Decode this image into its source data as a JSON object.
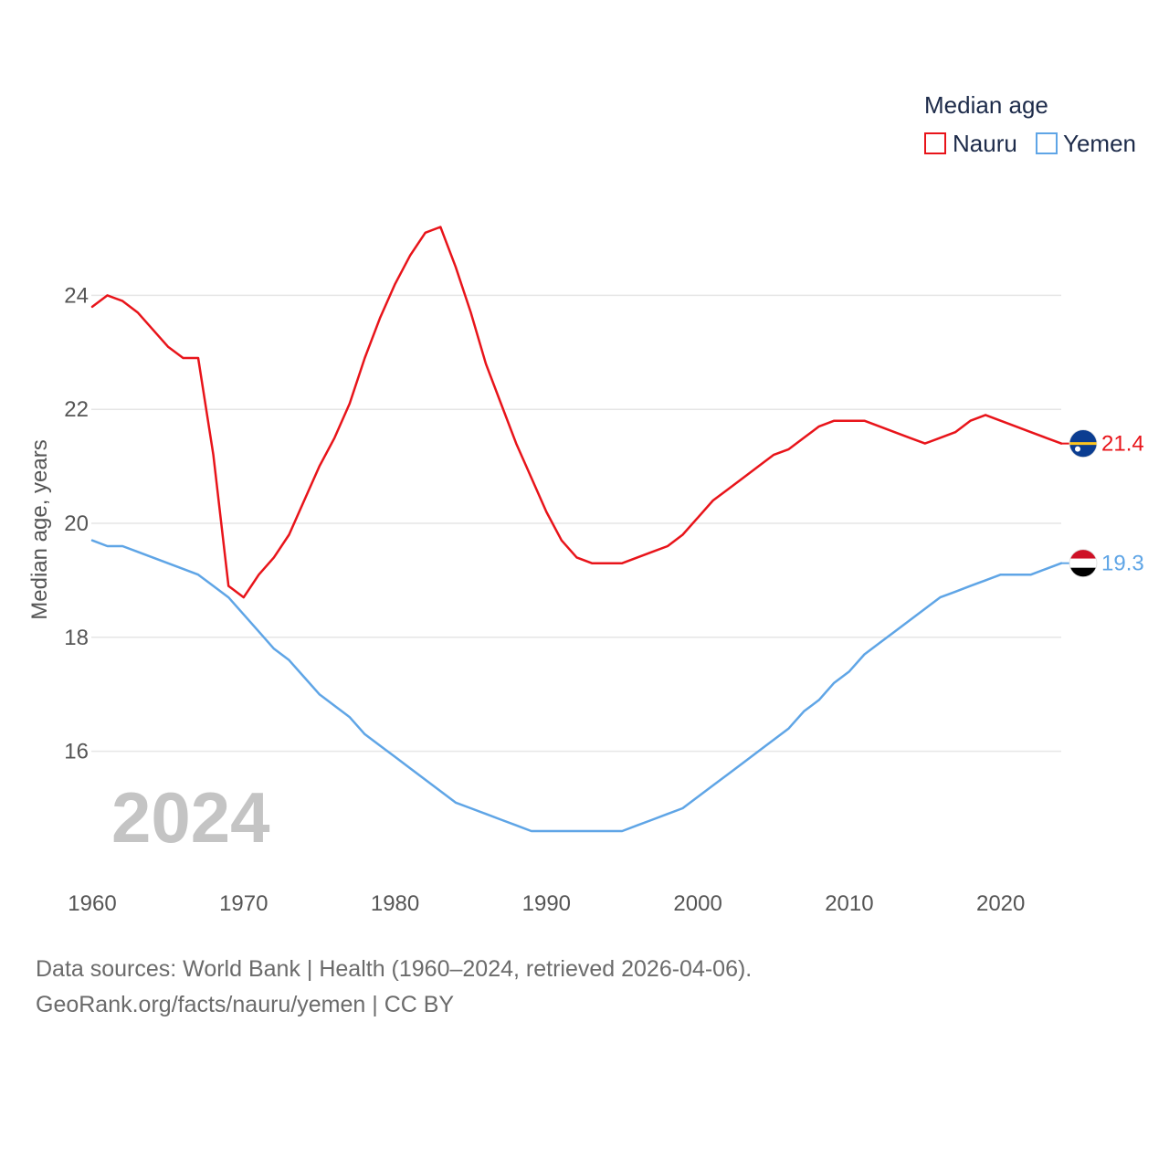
{
  "chart_data": {
    "type": "line",
    "title": "",
    "ylabel": "Median age, years",
    "xlabel": "",
    "xlim": [
      1960,
      2024
    ],
    "ylim": [
      14,
      25.7
    ],
    "x_ticks": [
      "1960",
      "1970",
      "1980",
      "1990",
      "2000",
      "2010",
      "2020"
    ],
    "y_ticks": [
      "16",
      "18",
      "20",
      "22",
      "24"
    ],
    "legend_title": "Median age",
    "legend_position": "top-right",
    "year_label": "2024",
    "x": [
      1960,
      1961,
      1962,
      1963,
      1964,
      1965,
      1966,
      1967,
      1968,
      1969,
      1970,
      1971,
      1972,
      1973,
      1974,
      1975,
      1976,
      1977,
      1978,
      1979,
      1980,
      1981,
      1982,
      1983,
      1984,
      1985,
      1986,
      1987,
      1988,
      1989,
      1990,
      1991,
      1992,
      1993,
      1994,
      1995,
      1996,
      1997,
      1998,
      1999,
      2000,
      2001,
      2002,
      2003,
      2004,
      2005,
      2006,
      2007,
      2008,
      2009,
      2010,
      2011,
      2012,
      2013,
      2014,
      2015,
      2016,
      2017,
      2018,
      2019,
      2020,
      2021,
      2022,
      2023,
      2024
    ],
    "series": [
      {
        "name": "Nauru",
        "color": "#e8141a",
        "end_label": "21.4",
        "flag": "nauru-flag",
        "values": [
          23.8,
          24.0,
          23.9,
          23.7,
          23.4,
          23.1,
          22.9,
          22.9,
          21.2,
          18.9,
          18.7,
          19.1,
          19.4,
          19.8,
          20.4,
          21.0,
          21.5,
          22.1,
          22.9,
          23.6,
          24.2,
          24.7,
          25.1,
          25.2,
          24.5,
          23.7,
          22.8,
          22.1,
          21.4,
          20.8,
          20.2,
          19.7,
          19.4,
          19.3,
          19.3,
          19.3,
          19.4,
          19.5,
          19.6,
          19.8,
          20.1,
          20.4,
          20.6,
          20.8,
          21.0,
          21.2,
          21.3,
          21.5,
          21.7,
          21.8,
          21.8,
          21.8,
          21.7,
          21.6,
          21.5,
          21.4,
          21.5,
          21.6,
          21.8,
          21.9,
          21.8,
          21.7,
          21.6,
          21.5,
          21.4
        ]
      },
      {
        "name": "Yemen",
        "color": "#5fa5e6",
        "end_label": "19.3",
        "flag": "yemen-flag",
        "values": [
          19.7,
          19.6,
          19.6,
          19.5,
          19.4,
          19.3,
          19.2,
          19.1,
          18.9,
          18.7,
          18.4,
          18.1,
          17.8,
          17.6,
          17.3,
          17.0,
          16.8,
          16.6,
          16.3,
          16.1,
          15.9,
          15.7,
          15.5,
          15.3,
          15.1,
          15.0,
          14.9,
          14.8,
          14.7,
          14.6,
          14.6,
          14.6,
          14.6,
          14.6,
          14.6,
          14.6,
          14.7,
          14.8,
          14.9,
          15.0,
          15.2,
          15.4,
          15.6,
          15.8,
          16.0,
          16.2,
          16.4,
          16.7,
          16.9,
          17.2,
          17.4,
          17.7,
          17.9,
          18.1,
          18.3,
          18.5,
          18.7,
          18.8,
          18.9,
          19.0,
          19.1,
          19.1,
          19.1,
          19.2,
          19.3
        ]
      }
    ]
  },
  "footer": {
    "source_line": "Data sources: World Bank | Health (1960–2024, retrieved 2026-04-06).",
    "url_line": "GeoRank.org/facts/nauru/yemen | CC BY"
  }
}
